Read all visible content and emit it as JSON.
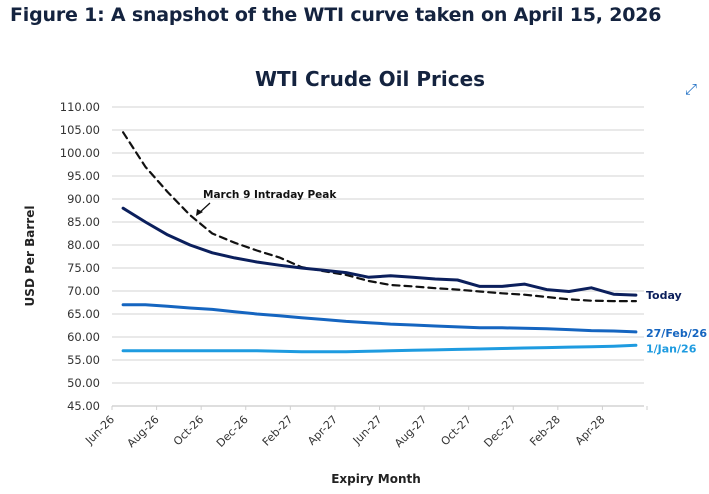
{
  "figure_title": "Figure 1: A snapshot of the WTI curve taken on April 15, 2026",
  "icons": {
    "expand": "expand-arrows-icon"
  },
  "chart_data": {
    "type": "line",
    "title": "WTI Crude Oil Prices",
    "xlabel": "Expiry Month",
    "ylabel": "USD Per Barrel",
    "ylim": [
      45,
      110
    ],
    "yticks": [
      "45.00",
      "50.00",
      "55.00",
      "60.00",
      "65.00",
      "70.00",
      "75.00",
      "80.00",
      "85.00",
      "90.00",
      "95.00",
      "100.00",
      "105.00",
      "110.00"
    ],
    "grid": true,
    "x": [
      "Jun-26",
      "Jul-26",
      "Aug-26",
      "Sep-26",
      "Oct-26",
      "Nov-26",
      "Dec-26",
      "Jan-27",
      "Feb-27",
      "Mar-27",
      "Apr-27",
      "May-27",
      "Jun-27",
      "Jul-27",
      "Aug-27",
      "Sep-27",
      "Oct-27",
      "Nov-27",
      "Dec-27",
      "Jan-28",
      "Feb-28",
      "Mar-28",
      "Apr-28",
      "May-28"
    ],
    "xtick_labels": [
      "Jun-26",
      "Aug-26",
      "Oct-26",
      "Dec-26",
      "Feb-27",
      "Apr-27",
      "Jun-27",
      "Aug-27",
      "Oct-27",
      "Dec-27",
      "Feb-28",
      "Apr-28"
    ],
    "series": [
      {
        "name": "1/Jan/26",
        "color": "#1e9be0",
        "style": "solid",
        "values": [
          57.0,
          57.0,
          57.0,
          57.0,
          57.0,
          57.0,
          57.0,
          56.9,
          56.8,
          56.8,
          56.8,
          56.9,
          57.0,
          57.1,
          57.2,
          57.3,
          57.4,
          57.5,
          57.6,
          57.7,
          57.8,
          57.9,
          58.0,
          58.2
        ]
      },
      {
        "name": "27/Feb/26",
        "color": "#1565c0",
        "style": "solid",
        "values": [
          67.0,
          67.0,
          66.7,
          66.3,
          66.0,
          65.5,
          65.0,
          64.6,
          64.2,
          63.8,
          63.4,
          63.1,
          62.8,
          62.6,
          62.4,
          62.2,
          62.0,
          62.0,
          61.9,
          61.8,
          61.6,
          61.4,
          61.3,
          61.1
        ]
      },
      {
        "name": "March 9 Intraday Peak",
        "color": "#111111",
        "style": "dashed",
        "values": [
          104.5,
          97.0,
          91.5,
          86.5,
          82.5,
          80.5,
          78.8,
          77.3,
          75.2,
          74.3,
          73.5,
          72.2,
          71.3,
          71.0,
          70.6,
          70.3,
          69.9,
          69.5,
          69.2,
          68.7,
          68.2,
          67.9,
          67.8,
          67.8
        ]
      },
      {
        "name": "Today",
        "color": "#0b1f5c",
        "style": "solid",
        "values": [
          88.0,
          85.0,
          82.2,
          80.0,
          78.3,
          77.2,
          76.3,
          75.6,
          75.0,
          74.5,
          74.0,
          73.0,
          73.3,
          73.0,
          72.6,
          72.4,
          71.0,
          71.0,
          71.5,
          70.3,
          69.9,
          70.7,
          69.3,
          69.1
        ]
      }
    ],
    "annotation": "March 9 Intraday Peak"
  }
}
